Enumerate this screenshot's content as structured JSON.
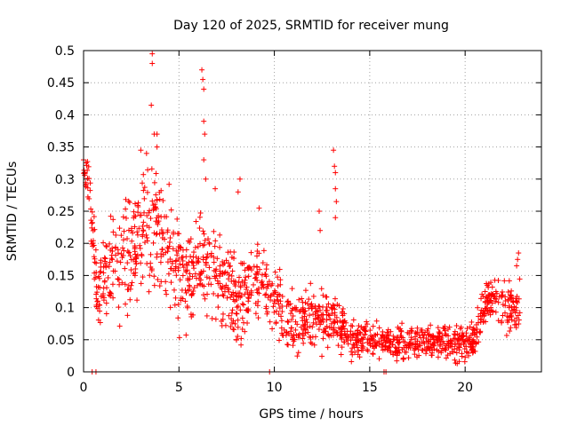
{
  "chart_data": {
    "type": "scatter",
    "title": "Day 120 of 2025, SRMTID for receiver mung",
    "xlabel": "GPS time / hours",
    "ylabel": "SRMTID / TECUs",
    "xlim": [
      0,
      24
    ],
    "ylim": [
      0,
      0.5
    ],
    "x_ticks": [
      0,
      5,
      10,
      15,
      20
    ],
    "x_tick_labels": [
      "0",
      "5",
      "10",
      "15",
      "20"
    ],
    "y_ticks": [
      0,
      0.05,
      0.1,
      0.15,
      0.2,
      0.25,
      0.3,
      0.35,
      0.4,
      0.45,
      0.5
    ],
    "y_tick_labels": [
      "0",
      "0.05",
      "0.1",
      "0.15",
      "0.2",
      "0.25",
      "0.3",
      "0.35",
      "0.4",
      "0.45",
      "0.5"
    ],
    "grid": true,
    "marker": "+",
    "color": "#ff0000",
    "trend": [
      [
        0.0,
        0.32
      ],
      [
        0.3,
        0.29
      ],
      [
        0.7,
        0.11
      ],
      [
        1.0,
        0.15
      ],
      [
        1.5,
        0.17
      ],
      [
        2.0,
        0.16
      ],
      [
        2.5,
        0.19
      ],
      [
        3.0,
        0.23
      ],
      [
        3.5,
        0.22
      ],
      [
        4.0,
        0.2
      ],
      [
        4.5,
        0.18
      ],
      [
        5.0,
        0.15
      ],
      [
        5.5,
        0.15
      ],
      [
        6.0,
        0.17
      ],
      [
        6.5,
        0.16
      ],
      [
        7.0,
        0.15
      ],
      [
        7.5,
        0.13
      ],
      [
        8.0,
        0.1
      ],
      [
        8.5,
        0.13
      ],
      [
        9.0,
        0.14
      ],
      [
        9.5,
        0.13
      ],
      [
        10.0,
        0.12
      ],
      [
        10.5,
        0.08
      ],
      [
        11.0,
        0.07
      ],
      [
        11.5,
        0.08
      ],
      [
        12.0,
        0.09
      ],
      [
        12.5,
        0.08
      ],
      [
        13.0,
        0.09
      ],
      [
        13.5,
        0.07
      ],
      [
        14.0,
        0.05
      ],
      [
        15.0,
        0.05
      ],
      [
        16.0,
        0.045
      ],
      [
        17.0,
        0.045
      ],
      [
        18.0,
        0.05
      ],
      [
        19.0,
        0.05
      ],
      [
        20.0,
        0.045
      ],
      [
        20.5,
        0.05
      ],
      [
        21.0,
        0.1
      ],
      [
        21.5,
        0.12
      ],
      [
        22.0,
        0.1
      ],
      [
        22.5,
        0.095
      ],
      [
        22.9,
        0.11
      ]
    ],
    "spread": [
      [
        0,
        0.02
      ],
      [
        1,
        0.06
      ],
      [
        4,
        0.07
      ],
      [
        7,
        0.05
      ],
      [
        10,
        0.04
      ],
      [
        13.5,
        0.03
      ],
      [
        14,
        0.02
      ],
      [
        20.5,
        0.02
      ],
      [
        21,
        0.025
      ],
      [
        23,
        0.03
      ]
    ],
    "sample_count": 1500,
    "peaks": [
      [
        3.6,
        0.495
      ],
      [
        3.6,
        0.48
      ],
      [
        3.55,
        0.415
      ],
      [
        3.7,
        0.37
      ],
      [
        3.85,
        0.37
      ],
      [
        3.85,
        0.35
      ],
      [
        3.3,
        0.34
      ],
      [
        3.0,
        0.345
      ],
      [
        6.2,
        0.47
      ],
      [
        6.25,
        0.455
      ],
      [
        6.3,
        0.44
      ],
      [
        6.3,
        0.39
      ],
      [
        6.35,
        0.37
      ],
      [
        6.3,
        0.33
      ],
      [
        6.4,
        0.3
      ],
      [
        6.9,
        0.285
      ],
      [
        13.1,
        0.345
      ],
      [
        13.15,
        0.32
      ],
      [
        13.2,
        0.31
      ],
      [
        13.2,
        0.285
      ],
      [
        13.25,
        0.265
      ],
      [
        13.2,
        0.24
      ],
      [
        8.2,
        0.3
      ],
      [
        8.1,
        0.28
      ],
      [
        12.35,
        0.25
      ],
      [
        12.4,
        0.22
      ],
      [
        9.2,
        0.255
      ],
      [
        0.0,
        0.33
      ],
      [
        0.05,
        0.31
      ],
      [
        22.8,
        0.185
      ],
      [
        22.75,
        0.175
      ],
      [
        22.7,
        0.165
      ]
    ],
    "zeros": [
      0.45,
      0.65,
      9.75,
      15.75,
      15.85
    ]
  }
}
